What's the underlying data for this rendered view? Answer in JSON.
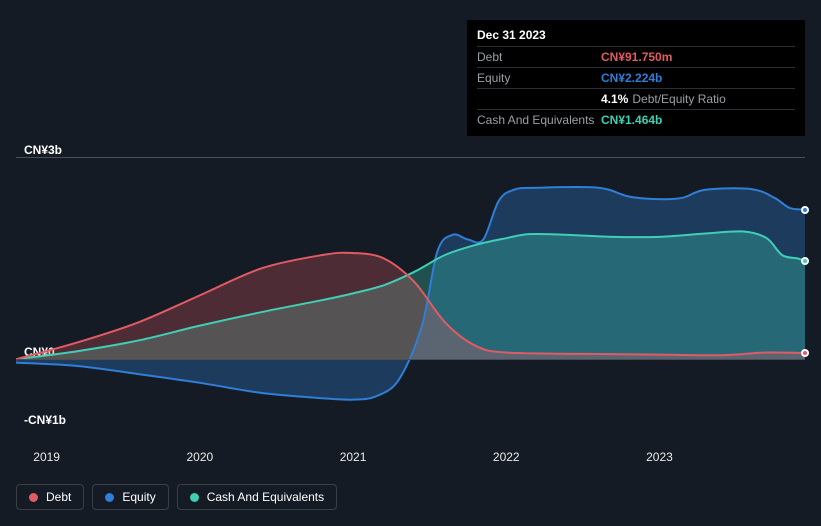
{
  "tooltip": {
    "date": "Dec 31 2023",
    "rows": [
      {
        "label": "Debt",
        "value": "CN¥91.750m",
        "color": "#e15b64",
        "suffix": ""
      },
      {
        "label": "Equity",
        "value": "CN¥2.224b",
        "color": "#2f7ed8",
        "suffix": ""
      },
      {
        "label": "",
        "value": "4.1%",
        "color": "#ffffff",
        "suffix": "Debt/Equity Ratio"
      },
      {
        "label": "Cash And Equivalents",
        "value": "CN¥1.464b",
        "color": "#3fcfb3",
        "suffix": ""
      }
    ]
  },
  "chart": {
    "type": "area",
    "background_color": "#151b24",
    "gridline_color": "#4a4f56",
    "x": {
      "min": 2018.8,
      "max": 2023.95,
      "ticks": [
        2019,
        2020,
        2021,
        2022,
        2023
      ],
      "tick_labels": [
        "2019",
        "2020",
        "2021",
        "2022",
        "2023"
      ]
    },
    "y": {
      "min": -1.2,
      "max": 3.2,
      "ticks": [
        -1,
        0,
        3
      ],
      "tick_labels": [
        "-CN¥1b",
        "CN¥0",
        "CN¥3b"
      ]
    },
    "series": {
      "debt": {
        "label": "Debt",
        "color": "#e15b64",
        "fill_opacity": 0.28,
        "points": [
          [
            2018.8,
            0.0
          ],
          [
            2019.2,
            0.25
          ],
          [
            2019.6,
            0.55
          ],
          [
            2020.0,
            0.95
          ],
          [
            2020.4,
            1.35
          ],
          [
            2020.8,
            1.55
          ],
          [
            2021.0,
            1.58
          ],
          [
            2021.2,
            1.5
          ],
          [
            2021.4,
            1.15
          ],
          [
            2021.6,
            0.55
          ],
          [
            2021.8,
            0.2
          ],
          [
            2022.0,
            0.1
          ],
          [
            2022.5,
            0.08
          ],
          [
            2023.0,
            0.07
          ],
          [
            2023.4,
            0.06
          ],
          [
            2023.7,
            0.1
          ],
          [
            2023.95,
            0.092
          ]
        ]
      },
      "equity": {
        "label": "Equity",
        "color": "#2f7ed8",
        "fill_opacity": 0.32,
        "points": [
          [
            2018.8,
            -0.05
          ],
          [
            2019.2,
            -0.1
          ],
          [
            2019.6,
            -0.22
          ],
          [
            2020.0,
            -0.35
          ],
          [
            2020.4,
            -0.5
          ],
          [
            2020.8,
            -0.58
          ],
          [
            2021.0,
            -0.6
          ],
          [
            2021.15,
            -0.55
          ],
          [
            2021.3,
            -0.3
          ],
          [
            2021.45,
            0.5
          ],
          [
            2021.55,
            1.6
          ],
          [
            2021.65,
            1.85
          ],
          [
            2021.75,
            1.78
          ],
          [
            2021.85,
            1.78
          ],
          [
            2021.95,
            2.35
          ],
          [
            2022.05,
            2.52
          ],
          [
            2022.2,
            2.55
          ],
          [
            2022.6,
            2.55
          ],
          [
            2022.8,
            2.42
          ],
          [
            2023.0,
            2.38
          ],
          [
            2023.15,
            2.4
          ],
          [
            2023.3,
            2.52
          ],
          [
            2023.6,
            2.53
          ],
          [
            2023.75,
            2.4
          ],
          [
            2023.85,
            2.25
          ],
          [
            2023.95,
            2.224
          ]
        ]
      },
      "cash": {
        "label": "Cash And Equivalents",
        "color": "#3fcfb3",
        "fill_opacity": 0.3,
        "points": [
          [
            2018.8,
            0.0
          ],
          [
            2019.2,
            0.12
          ],
          [
            2019.6,
            0.28
          ],
          [
            2020.0,
            0.5
          ],
          [
            2020.4,
            0.7
          ],
          [
            2020.8,
            0.88
          ],
          [
            2021.0,
            0.98
          ],
          [
            2021.2,
            1.1
          ],
          [
            2021.4,
            1.3
          ],
          [
            2021.6,
            1.55
          ],
          [
            2021.8,
            1.7
          ],
          [
            2022.0,
            1.8
          ],
          [
            2022.15,
            1.86
          ],
          [
            2022.4,
            1.85
          ],
          [
            2022.7,
            1.82
          ],
          [
            2023.0,
            1.82
          ],
          [
            2023.3,
            1.87
          ],
          [
            2023.55,
            1.9
          ],
          [
            2023.7,
            1.8
          ],
          [
            2023.8,
            1.55
          ],
          [
            2023.9,
            1.5
          ],
          [
            2023.95,
            1.464
          ]
        ]
      }
    },
    "legend_order": [
      "debt",
      "equity",
      "cash"
    ]
  },
  "text": {
    "axis_font_size": 12,
    "legend_font_size": 12,
    "tooltip_font_size": 12
  }
}
